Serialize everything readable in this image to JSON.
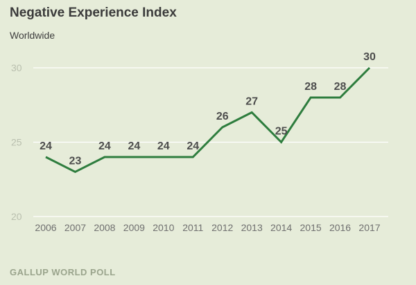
{
  "chart_data": {
    "type": "line",
    "title": "Negative Experience Index",
    "subtitle": "Worldwide",
    "categories": [
      "2006",
      "2007",
      "2008",
      "2009",
      "2010",
      "2011",
      "2012",
      "2013",
      "2014",
      "2015",
      "2016",
      "2017"
    ],
    "series": [
      {
        "name": "Negative Experience Index",
        "values": [
          24,
          23,
          24,
          24,
          24,
          24,
          26,
          27,
          25,
          28,
          28,
          30
        ]
      }
    ],
    "yticks": [
      20,
      25,
      30
    ],
    "ylim": [
      20,
      30
    ],
    "xlabel": "",
    "ylabel": "",
    "grid": true,
    "line_color": "#2e7d3e",
    "source": "GALLUP WORLD POLL"
  }
}
